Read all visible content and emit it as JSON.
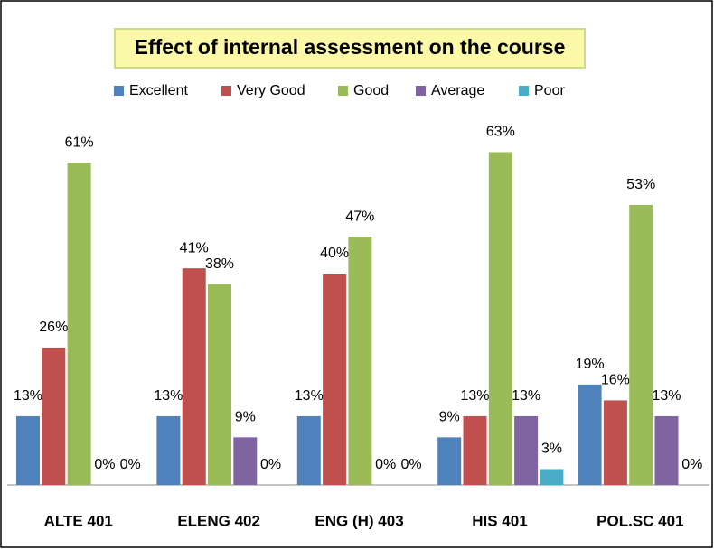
{
  "chart_data": {
    "type": "bar",
    "title": "Effect of internal assessment on the course",
    "categories": [
      "ALTE 401",
      "ELENG 402",
      "ENG (H) 403",
      "HIS 401",
      "POL.SC 401"
    ],
    "series": [
      {
        "name": "Excellent",
        "color": "#4f81bd",
        "values": [
          13,
          13,
          13,
          9,
          19
        ],
        "value_labels": [
          "13%",
          "13%",
          "13%",
          "9%",
          "19%"
        ]
      },
      {
        "name": "Very Good",
        "color": "#c0504d",
        "values": [
          26,
          41,
          40,
          13,
          16
        ],
        "value_labels": [
          "26%",
          "41%",
          "40%",
          "13%",
          "16%"
        ]
      },
      {
        "name": "Good",
        "color": "#9bbb59",
        "values": [
          61,
          38,
          47,
          63,
          53
        ],
        "value_labels": [
          "61%",
          "38%",
          "47%",
          "63%",
          "53%"
        ]
      },
      {
        "name": "Average",
        "color": "#8064a2",
        "values": [
          0,
          9,
          0,
          13,
          13
        ],
        "value_labels": [
          "0%",
          "9%",
          "0%",
          "13%",
          "13%"
        ]
      },
      {
        "name": "Poor",
        "color": "#4bacc6",
        "values": [
          0,
          0,
          0,
          3,
          0
        ],
        "value_labels": [
          "0%",
          "0%",
          "0%",
          "3%",
          "0%"
        ]
      }
    ],
    "legend": "top"
  }
}
